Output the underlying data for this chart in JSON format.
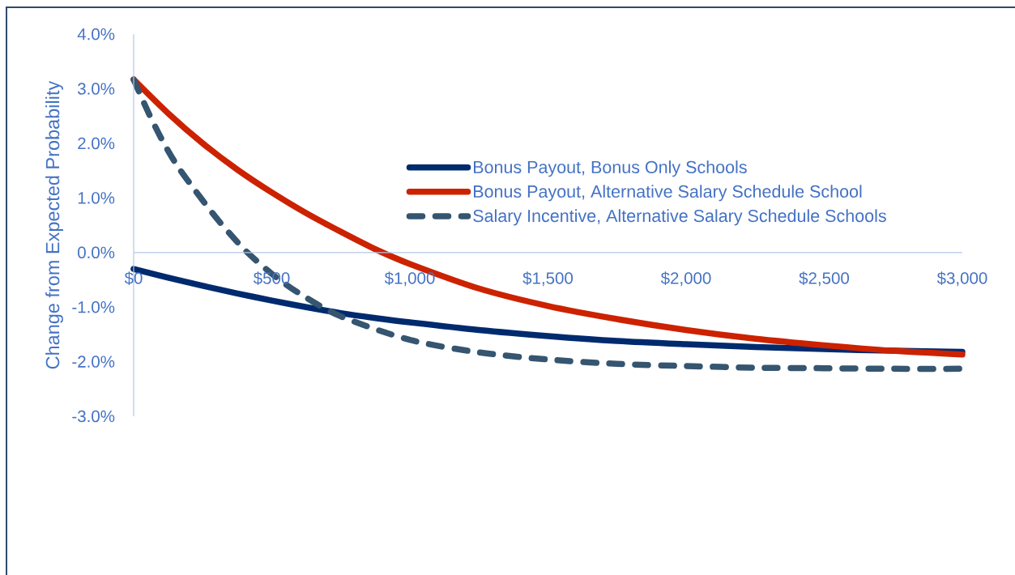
{
  "chart_data": {
    "type": "line",
    "ylabel": "Change from Expected Probability",
    "xlim": [
      0,
      3000
    ],
    "ylim": [
      -3,
      4
    ],
    "xticks": [
      {
        "value": 0,
        "label": "$0"
      },
      {
        "value": 500,
        "label": "$500"
      },
      {
        "value": 1000,
        "label": "$1,000"
      },
      {
        "value": 1500,
        "label": "$1,500"
      },
      {
        "value": 2000,
        "label": "$2,000"
      },
      {
        "value": 2500,
        "label": "$2,500"
      },
      {
        "value": 3000,
        "label": "$3,000"
      }
    ],
    "yticks": [
      {
        "value": -3,
        "label": "-3.0%"
      },
      {
        "value": -2,
        "label": "-2.0%"
      },
      {
        "value": -1,
        "label": "-1.0%"
      },
      {
        "value": 0,
        "label": "0.0%"
      },
      {
        "value": 1,
        "label": "1.0%"
      },
      {
        "value": 2,
        "label": "2.0%"
      },
      {
        "value": 3,
        "label": "3.0%"
      },
      {
        "value": 4,
        "label": "4.0%"
      }
    ],
    "legend": "top right",
    "series": [
      {
        "name": "Bonus Payout, Bonus Only Schools",
        "color": "#002a6e",
        "line_style": "solid",
        "x": [
          0,
          125,
          250,
          375,
          500,
          625,
          750,
          875,
          1000,
          1250,
          1500,
          1750,
          2000,
          2250,
          2500,
          2750,
          3000
        ],
        "values": [
          -0.3,
          -0.46,
          -0.61,
          -0.75,
          -0.88,
          -1.0,
          -1.11,
          -1.2,
          -1.28,
          -1.42,
          -1.53,
          -1.62,
          -1.68,
          -1.73,
          -1.77,
          -1.8,
          -1.82
        ]
      },
      {
        "name": "Bonus Payout, Alternative Salary Schedule School",
        "color": "#cc2200",
        "line_style": "solid",
        "x": [
          0,
          125,
          250,
          375,
          500,
          625,
          750,
          875,
          1000,
          1250,
          1500,
          1750,
          2000,
          2250,
          2500,
          2750,
          3000
        ],
        "values": [
          3.17,
          2.55,
          2.0,
          1.52,
          1.1,
          0.72,
          0.38,
          0.06,
          -0.21,
          -0.66,
          -0.98,
          -1.22,
          -1.42,
          -1.58,
          -1.7,
          -1.8,
          -1.87
        ]
      },
      {
        "name": "Salary Incentive, Alternative Salary Schedule Schools",
        "color": "#355570",
        "line_style": "dashed",
        "x": [
          0,
          50,
          100,
          150,
          200,
          300,
          400,
          500,
          600,
          750,
          1000,
          1250,
          1500,
          1750,
          2000,
          2250,
          2500,
          2750,
          3000
        ],
        "values": [
          3.17,
          2.6,
          2.09,
          1.65,
          1.29,
          0.63,
          0.06,
          -0.39,
          -0.75,
          -1.17,
          -1.6,
          -1.83,
          -1.96,
          -2.04,
          -2.08,
          -2.11,
          -2.12,
          -2.13,
          -2.13
        ]
      }
    ]
  }
}
